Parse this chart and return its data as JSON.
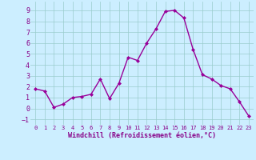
{
  "x": [
    0,
    1,
    2,
    3,
    4,
    5,
    6,
    7,
    8,
    9,
    10,
    11,
    12,
    13,
    14,
    15,
    16,
    17,
    18,
    19,
    20,
    21,
    22,
    23
  ],
  "y": [
    1.8,
    1.6,
    0.1,
    0.4,
    1.0,
    1.1,
    1.3,
    2.7,
    0.9,
    2.3,
    4.7,
    4.4,
    6.0,
    7.3,
    8.9,
    9.0,
    8.3,
    5.4,
    3.1,
    2.7,
    2.1,
    1.8,
    0.6,
    -0.7
  ],
  "line_color": "#990099",
  "marker": "D",
  "marker_size": 2,
  "xlim": [
    -0.5,
    23.5
  ],
  "ylim": [
    -1.5,
    9.8
  ],
  "yticks": [
    -1,
    0,
    1,
    2,
    3,
    4,
    5,
    6,
    7,
    8,
    9
  ],
  "xticks": [
    0,
    1,
    2,
    3,
    4,
    5,
    6,
    7,
    8,
    9,
    10,
    11,
    12,
    13,
    14,
    15,
    16,
    17,
    18,
    19,
    20,
    21,
    22,
    23
  ],
  "xlabel": "Windchill (Refroidissement éolien,°C)",
  "bg_color": "#cceeff",
  "grid_color": "#99cccc",
  "tick_label_color": "#880088",
  "axis_label_color": "#880088",
  "line_width": 1.0
}
